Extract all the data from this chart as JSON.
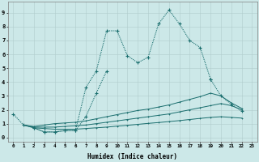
{
  "xlabel": "Humidex (Indice chaleur)",
  "bg_color": "#cce8e8",
  "grid_color": "#b0cccc",
  "line_color": "#1a6e6e",
  "curve1_x": [
    0,
    1,
    2,
    3,
    4,
    5,
    6,
    7,
    8,
    9,
    10,
    11,
    12,
    13,
    14,
    15,
    16,
    17,
    18,
    19
  ],
  "curve1_y": [
    1.7,
    0.9,
    0.7,
    0.4,
    0.4,
    0.5,
    0.5,
    3.6,
    4.8,
    7.7,
    7.7,
    5.9,
    5.4,
    5.8,
    8.2,
    9.2,
    8.2,
    7.0,
    6.5,
    4.2
  ],
  "curve2_x": [
    2,
    3,
    4,
    5,
    6,
    7,
    8,
    9
  ],
  "curve2_y": [
    0.7,
    0.4,
    0.4,
    0.5,
    0.5,
    1.5,
    3.2,
    4.8
  ],
  "curve3_x": [
    19,
    20,
    21,
    22
  ],
  "curve3_y": [
    4.2,
    3.0,
    2.4,
    1.9
  ],
  "flat1_x": [
    1,
    2,
    3,
    4,
    5,
    6,
    7,
    8,
    9,
    10,
    11,
    12,
    13,
    14,
    15,
    16,
    17,
    18,
    19,
    20,
    21,
    22
  ],
  "flat1_y": [
    0.9,
    0.8,
    0.9,
    1.0,
    1.05,
    1.1,
    1.2,
    1.35,
    1.5,
    1.65,
    1.8,
    1.95,
    2.05,
    2.2,
    2.35,
    2.55,
    2.75,
    2.95,
    3.2,
    3.0,
    2.5,
    2.1
  ],
  "flat2_x": [
    1,
    2,
    3,
    4,
    5,
    6,
    7,
    8,
    9,
    10,
    11,
    12,
    13,
    14,
    15,
    16,
    17,
    18,
    19,
    20,
    21,
    22
  ],
  "flat2_y": [
    0.9,
    0.75,
    0.75,
    0.75,
    0.8,
    0.85,
    0.9,
    1.0,
    1.1,
    1.2,
    1.3,
    1.4,
    1.5,
    1.6,
    1.7,
    1.85,
    2.0,
    2.15,
    2.3,
    2.45,
    2.3,
    2.0
  ],
  "flat3_x": [
    1,
    2,
    3,
    4,
    5,
    6,
    7,
    8,
    9,
    10,
    11,
    12,
    13,
    14,
    15,
    16,
    17,
    18,
    19,
    20,
    21,
    22
  ],
  "flat3_y": [
    0.9,
    0.7,
    0.65,
    0.6,
    0.6,
    0.6,
    0.65,
    0.7,
    0.75,
    0.82,
    0.88,
    0.95,
    1.02,
    1.08,
    1.15,
    1.22,
    1.3,
    1.38,
    1.45,
    1.5,
    1.45,
    1.4
  ],
  "xlim": [
    -0.5,
    23.5
  ],
  "ylim": [
    -0.3,
    9.8
  ],
  "xticks": [
    0,
    1,
    2,
    3,
    4,
    5,
    6,
    7,
    8,
    9,
    10,
    11,
    12,
    13,
    14,
    15,
    16,
    17,
    18,
    19,
    20,
    21,
    22,
    23
  ],
  "yticks": [
    0,
    1,
    2,
    3,
    4,
    5,
    6,
    7,
    8,
    9
  ]
}
